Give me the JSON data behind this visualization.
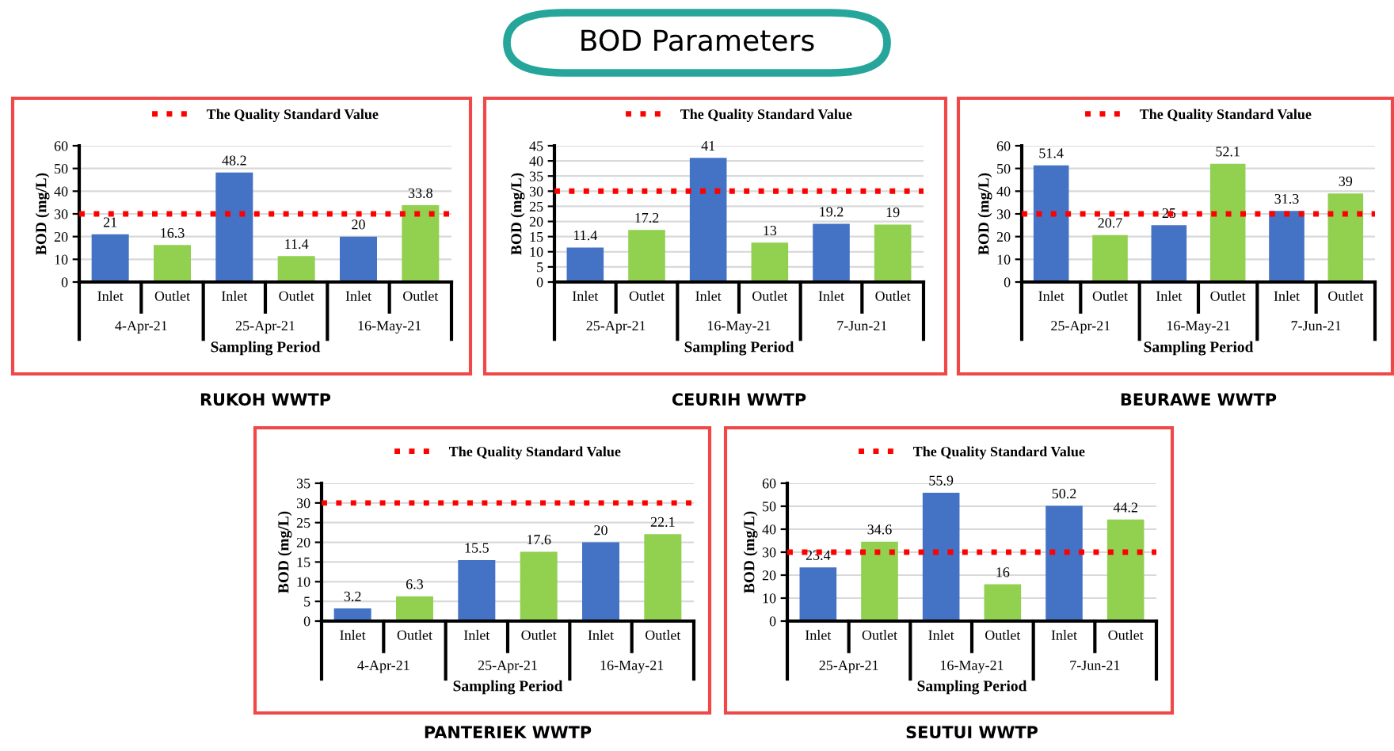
{
  "chart_data": [
    {
      "type": "other",
      "title": "BOD Parameters"
    },
    {
      "type": "bar",
      "title": "RUKOH WWTP",
      "xlabel": "Sampling Period",
      "ylabel": "BOD (mg/L)",
      "categories": [
        "Inlet",
        "Outlet",
        "Inlet",
        "Outlet",
        "Inlet",
        "Outlet"
      ],
      "annotations": [
        "4-Apr-21",
        "25-Apr-21",
        "16-May-21"
      ],
      "values": [
        21,
        16.3,
        48.2,
        11.4,
        20,
        33.8
      ],
      "colors": [
        "#4472c4",
        "#92d050",
        "#4472c4",
        "#92d050",
        "#4472c4",
        "#92d050"
      ],
      "ylim": [
        0,
        60
      ],
      "yticks": [
        0,
        10,
        20,
        30,
        40,
        50,
        60
      ],
      "grid": "y",
      "data_labels": true,
      "legend": "top",
      "ref_lines": [
        {
          "axis": "y",
          "value": 30,
          "label": "The Quality Standard Value",
          "color": "#ff0000",
          "line_style": "dotted"
        }
      ]
    },
    {
      "type": "bar",
      "title": "CEURIH WWTP",
      "xlabel": "Sampling Period",
      "ylabel": "BOD (mg/L)",
      "categories": [
        "Inlet",
        "Outlet",
        "Inlet",
        "Outlet",
        "Inlet",
        "Outlet"
      ],
      "annotations": [
        "25-Apr-21",
        "16-May-21",
        "7-Jun-21"
      ],
      "values": [
        11.4,
        17.2,
        41,
        13,
        19.2,
        19
      ],
      "colors": [
        "#4472c4",
        "#92d050",
        "#4472c4",
        "#92d050",
        "#4472c4",
        "#92d050"
      ],
      "ylim": [
        0,
        45
      ],
      "yticks": [
        0,
        5,
        10,
        15,
        20,
        25,
        30,
        35,
        40,
        45
      ],
      "grid": "y",
      "data_labels": true,
      "legend": "top",
      "ref_lines": [
        {
          "axis": "y",
          "value": 30,
          "label": "The Quality Standard Value",
          "color": "#ff0000",
          "line_style": "dotted"
        }
      ]
    },
    {
      "type": "bar",
      "title": "BEURAWE WWTP",
      "xlabel": "Sampling Period",
      "ylabel": "BOD (mg/L)",
      "categories": [
        "Inlet",
        "Outlet",
        "Inlet",
        "Outlet",
        "Inlet",
        "Outlet"
      ],
      "annotations": [
        "25-Apr-21",
        "16-May-21",
        "7-Jun-21"
      ],
      "values": [
        51.4,
        20.7,
        25,
        52.1,
        31.3,
        39
      ],
      "colors": [
        "#4472c4",
        "#92d050",
        "#4472c4",
        "#92d050",
        "#4472c4",
        "#92d050"
      ],
      "ylim": [
        0,
        60
      ],
      "yticks": [
        0,
        10,
        20,
        30,
        40,
        50,
        60
      ],
      "grid": "y",
      "data_labels": true,
      "legend": "top",
      "ref_lines": [
        {
          "axis": "y",
          "value": 30,
          "label": "The Quality Standard Value",
          "color": "#ff0000",
          "line_style": "dotted"
        }
      ]
    },
    {
      "type": "bar",
      "title": "PANTERIEK WWTP",
      "xlabel": "Sampling Period",
      "ylabel": "BOD (mg/L)",
      "categories": [
        "Inlet",
        "Outlet",
        "Inlet",
        "Outlet",
        "Inlet",
        "Outlet"
      ],
      "annotations": [
        "4-Apr-21",
        "25-Apr-21",
        "16-May-21"
      ],
      "values": [
        3.2,
        6.3,
        15.5,
        17.6,
        20,
        22.1
      ],
      "colors": [
        "#4472c4",
        "#92d050",
        "#4472c4",
        "#92d050",
        "#4472c4",
        "#92d050"
      ],
      "ylim": [
        0,
        35
      ],
      "yticks": [
        0,
        5,
        10,
        15,
        20,
        25,
        30,
        35
      ],
      "grid": "y",
      "data_labels": true,
      "legend": "top",
      "ref_lines": [
        {
          "axis": "y",
          "value": 30,
          "label": "The Quality Standard Value",
          "color": "#ff0000",
          "line_style": "dotted"
        }
      ]
    },
    {
      "type": "bar",
      "title": "SEUTUI WWTP",
      "xlabel": "Sampling Period",
      "ylabel": "BOD (mg/L)",
      "categories": [
        "Inlet",
        "Outlet",
        "Inlet",
        "Outlet",
        "Inlet",
        "Outlet"
      ],
      "annotations": [
        "25-Apr-21",
        "16-May-21",
        "7-Jun-21"
      ],
      "values": [
        23.4,
        34.6,
        55.9,
        16,
        50.2,
        44.2
      ],
      "colors": [
        "#4472c4",
        "#92d050",
        "#4472c4",
        "#92d050",
        "#4472c4",
        "#92d050"
      ],
      "ylim": [
        0,
        60
      ],
      "yticks": [
        0,
        10,
        20,
        30,
        40,
        50,
        60
      ],
      "grid": "y",
      "data_labels": true,
      "legend": "top",
      "ref_lines": [
        {
          "axis": "y",
          "value": 30,
          "label": "The Quality Standard Value",
          "color": "#ff0000",
          "line_style": "dotted"
        }
      ]
    }
  ]
}
